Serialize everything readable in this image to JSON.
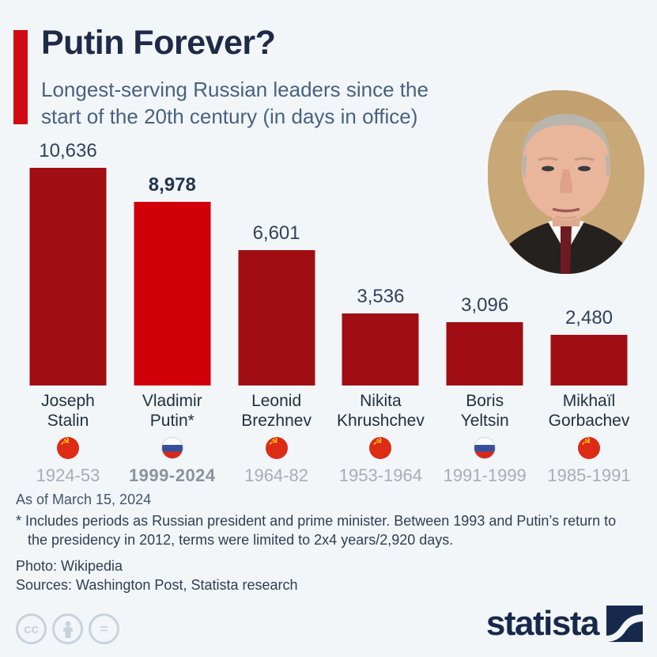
{
  "header": {
    "title": "Putin Forever?",
    "subtitle_line1": "Longest-serving Russian leaders since the",
    "subtitle_line2": "start of the 20th century (in days in office)"
  },
  "chart_data": {
    "type": "bar",
    "title": "Putin Forever?",
    "subtitle": "Longest-serving Russian leaders since the start of the 20th century (in days in office)",
    "ylabel": "days in office",
    "ylim": [
      0,
      10636
    ],
    "grid": false,
    "categories": [
      "Joseph Stalin",
      "Vladimir Putin*",
      "Leonid Brezhnev",
      "Nikita Khrushchev",
      "Boris Yeltsin",
      "Mikhaïl Gorbachev"
    ],
    "values": [
      10636,
      8978,
      6601,
      3536,
      3096,
      2480
    ],
    "bars": [
      {
        "name_line1": "Joseph",
        "name_line2": "Stalin",
        "value": 10636,
        "value_label": "10,636",
        "years": "1924-53",
        "flag": "soviet",
        "highlight": false
      },
      {
        "name_line1": "Vladimir",
        "name_line2": "Putin*",
        "value": 8978,
        "value_label": "8,978",
        "years": "1999-2024",
        "flag": "russia",
        "highlight": true
      },
      {
        "name_line1": "Leonid",
        "name_line2": "Brezhnev",
        "value": 6601,
        "value_label": "6,601",
        "years": "1964-82",
        "flag": "soviet",
        "highlight": false
      },
      {
        "name_line1": "Nikita",
        "name_line2": "Khrushchev",
        "value": 3536,
        "value_label": "3,536",
        "years": "1953-1964",
        "flag": "soviet",
        "highlight": false
      },
      {
        "name_line1": "Boris",
        "name_line2": "Yeltsin",
        "value": 3096,
        "value_label": "3,096",
        "years": "1991-1999",
        "flag": "russia",
        "highlight": false
      },
      {
        "name_line1": "Mikhaïl",
        "name_line2": "Gorbachev",
        "value": 2480,
        "value_label": "2,480",
        "years": "1985-1991",
        "flag": "soviet",
        "highlight": false
      }
    ],
    "bar_colors": {
      "default": "#A00D13",
      "highlight": "#D10008"
    }
  },
  "footer": {
    "as_of": "As of March 15, 2024",
    "footnote_line1": "* Includes periods as Russian president and prime minister. Between 1993 and Putin’s return to",
    "footnote_line2": "the presidency in 2012, terms were limited to 2x4 years/2,920 days.",
    "photo_credit": "Photo: Wikipedia",
    "sources": "Sources: Washington Post, Statista research"
  },
  "branding": {
    "logo_text": "statista",
    "license_icons": [
      "cc-icon",
      "person-icon",
      "equals-icon"
    ]
  },
  "icons": {
    "soviet_flag": "hammer-and-sickle-flag-icon",
    "russia_flag": "russia-tricolor-flag-icon",
    "hammer_sickle_glyph": "☭"
  },
  "colors": {
    "background": "#F3F6F9",
    "accent_red": "#D20A11",
    "title_navy": "#1E2A47",
    "subtitle_slate": "#48617F",
    "years_gray": "#A6ADB5",
    "logo_navy": "#16294C"
  }
}
